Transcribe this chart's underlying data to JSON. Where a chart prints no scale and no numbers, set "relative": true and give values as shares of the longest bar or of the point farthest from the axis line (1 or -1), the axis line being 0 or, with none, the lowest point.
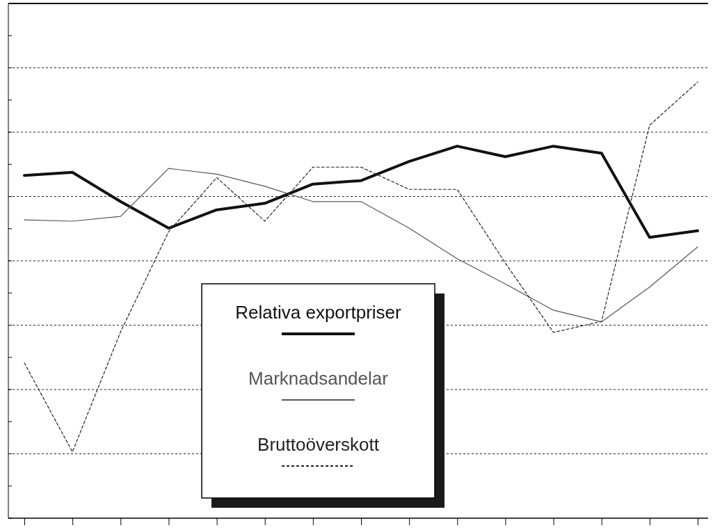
{
  "chart_data": {
    "type": "line",
    "relative": true,
    "categories": [
      null,
      null,
      null,
      null,
      null,
      null,
      null,
      null,
      null,
      null,
      null,
      null,
      null,
      null,
      null
    ],
    "grid": "y",
    "legend": "bottom",
    "series": [
      {
        "name": "Relativa exportpriser",
        "color": "#111111",
        "line_style": "solid",
        "values": [
          0.786,
          0.793,
          0.726,
          0.665,
          0.707,
          0.722,
          0.766,
          0.774,
          0.818,
          0.853,
          0.829,
          0.853,
          0.837,
          0.644,
          0.659
        ]
      },
      {
        "name": "Marknadsandelar",
        "color": "#555555",
        "line_style": "solid",
        "values": [
          0.684,
          0.681,
          0.692,
          0.802,
          0.789,
          0.761,
          0.726,
          0.726,
          0.665,
          0.595,
          0.537,
          0.477,
          0.45,
          0.53,
          0.622
        ]
      },
      {
        "name": "Bruttoöverskott",
        "color": "#222222",
        "line_style": "dashed",
        "values": [
          0.356,
          0.152,
          0.427,
          0.657,
          0.781,
          0.681,
          0.805,
          0.805,
          0.754,
          0.754,
          0.585,
          0.426,
          0.451,
          0.901,
          1
        ]
      }
    ]
  }
}
